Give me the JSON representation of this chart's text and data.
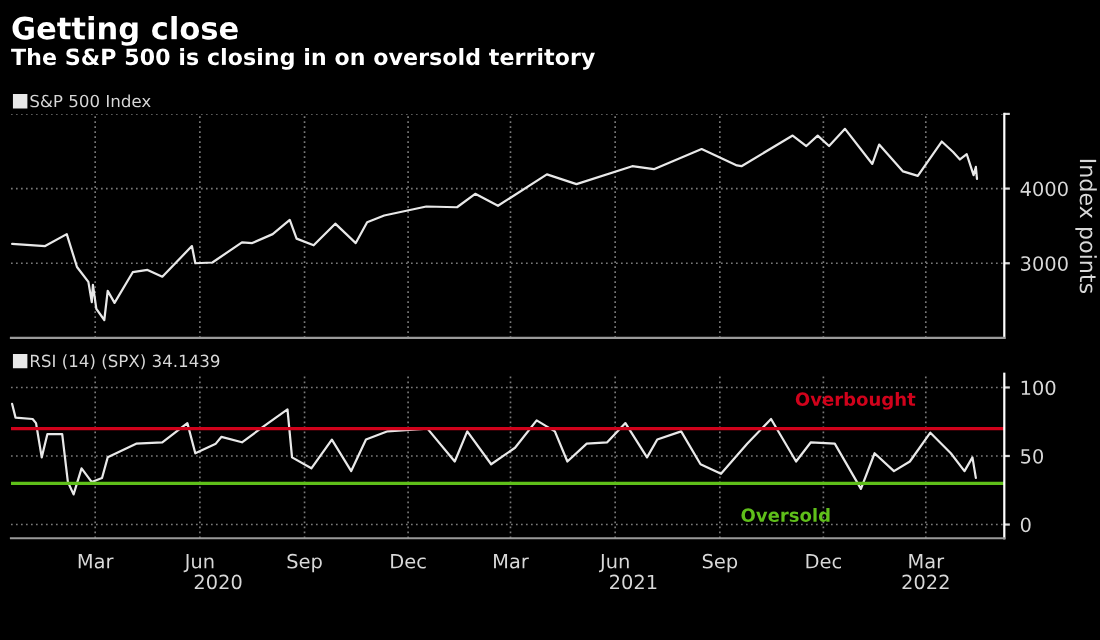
{
  "chart_data": [
    {
      "type": "line",
      "title": "Getting close",
      "subtitle": "The S&P 500 is closing in on oversold territory",
      "ylabel": "Index points",
      "series": [
        {
          "name": "S&P 500 Index",
          "color": "#e8e8e8",
          "x": [
            "2020-01-02",
            "2020-01-31",
            "2020-02-19",
            "2020-02-28",
            "2020-03-09",
            "2020-03-12",
            "2020-03-13",
            "2020-03-16",
            "2020-03-23",
            "2020-03-26",
            "2020-04-01",
            "2020-04-17",
            "2020-04-30",
            "2020-05-13",
            "2020-06-08",
            "2020-06-11",
            "2020-06-26",
            "2020-07-22",
            "2020-07-31",
            "2020-08-18",
            "2020-09-02",
            "2020-09-08",
            "2020-09-23",
            "2020-10-12",
            "2020-10-30",
            "2020-11-09",
            "2020-11-24",
            "2020-12-31",
            "2021-01-27",
            "2021-02-12",
            "2021-03-04",
            "2021-04-16",
            "2021-05-12",
            "2021-06-30",
            "2021-07-19",
            "2021-08-30",
            "2021-09-30",
            "2021-10-04",
            "2021-11-18",
            "2021-11-30",
            "2021-12-10",
            "2021-12-20",
            "2022-01-03",
            "2022-01-27",
            "2022-02-02",
            "2022-02-23",
            "2022-03-08",
            "2022-03-29",
            "2022-04-08",
            "2022-04-14",
            "2022-04-20",
            "2022-04-26",
            "2022-04-28",
            "2022-04-29"
          ],
          "values": [
            3260,
            3230,
            3390,
            2950,
            2750,
            2480,
            2710,
            2390,
            2240,
            2630,
            2470,
            2880,
            2910,
            2820,
            3230,
            3000,
            3010,
            3280,
            3270,
            3390,
            3580,
            3330,
            3240,
            3530,
            3270,
            3550,
            3640,
            3760,
            3750,
            3930,
            3770,
            4190,
            4060,
            4300,
            4260,
            4530,
            4310,
            4300,
            4710,
            4570,
            4710,
            4570,
            4800,
            4330,
            4590,
            4230,
            4170,
            4630,
            4490,
            4390,
            4460,
            4180,
            4290,
            4130
          ]
        }
      ],
      "xlim": [
        "2020-01-01",
        "2022-05-23"
      ],
      "xticks": [
        {
          "value": "2020-03-15",
          "label": null
        },
        {
          "value": "2020-06-15",
          "label": null
        },
        {
          "value": "2020-09-15",
          "label": null
        },
        {
          "value": "2020-12-15",
          "label": null
        },
        {
          "value": "2021-03-15",
          "label": null
        },
        {
          "value": "2021-06-15",
          "label": null
        },
        {
          "value": "2021-09-15",
          "label": null
        },
        {
          "value": "2021-12-15",
          "label": null
        },
        {
          "value": "2022-03-15",
          "label": null
        }
      ],
      "ylim": [
        2000,
        5000
      ],
      "yticks": [
        3000,
        4000,
        {
          "value": 5000,
          "label": null
        }
      ],
      "grid": true,
      "legend": "top left",
      "tick_labels": "y"
    },
    {
      "type": "line",
      "series": [
        {
          "name": "RSI (14) (SPX) 34.1439",
          "color": "#e8e8e8",
          "x": [
            "2020-01-02",
            "2020-01-05",
            "2020-01-20",
            "2020-01-23",
            "2020-01-28",
            "2020-02-02",
            "2020-02-15",
            "2020-02-20",
            "2020-02-25",
            "2020-03-03",
            "2020-03-12",
            "2020-03-21",
            "2020-03-26",
            "2020-04-20",
            "2020-05-13",
            "2020-06-04",
            "2020-06-11",
            "2020-06-29",
            "2020-07-04",
            "2020-07-22",
            "2020-08-14",
            "2020-08-31",
            "2020-09-04",
            "2020-09-21",
            "2020-10-09",
            "2020-10-26",
            "2020-11-08",
            "2020-11-27",
            "2021-01-01",
            "2021-01-25",
            "2021-02-05",
            "2021-02-26",
            "2021-03-19",
            "2021-04-07",
            "2021-04-23",
            "2021-05-04",
            "2021-05-21",
            "2021-06-08",
            "2021-06-24",
            "2021-07-13",
            "2021-07-22",
            "2021-08-12",
            "2021-08-29",
            "2021-09-16",
            "2021-10-09",
            "2021-10-30",
            "2021-11-21",
            "2021-12-04",
            "2021-12-25",
            "2022-01-17",
            "2022-01-29",
            "2022-02-15",
            "2022-03-01",
            "2022-03-19",
            "2022-04-06",
            "2022-04-18",
            "2022-04-25",
            "2022-04-28"
          ],
          "values": [
            88,
            78,
            77,
            74,
            49,
            66,
            66,
            31,
            22,
            41,
            31,
            34,
            49,
            59,
            60,
            74,
            52,
            59,
            64,
            60,
            74,
            84,
            49,
            41,
            62,
            39,
            62,
            68,
            70,
            46,
            68,
            44,
            56,
            76,
            68,
            46,
            59,
            60,
            74,
            49,
            62,
            68,
            44,
            37,
            59,
            77,
            46,
            60,
            59,
            26,
            52,
            39,
            46,
            67,
            52,
            39,
            49,
            34
          ]
        }
      ],
      "xlim": [
        "2020-01-01",
        "2022-05-23"
      ],
      "xticks": [
        {
          "value": "2020-03-15",
          "label": "Mar"
        },
        {
          "value": "2020-06-15",
          "label": "Jun"
        },
        {
          "value": "2020-09-15",
          "label": "Sep"
        },
        {
          "value": "2020-12-15",
          "label": "Dec"
        },
        {
          "value": "2021-03-15",
          "label": "Mar"
        },
        {
          "value": "2021-06-15",
          "label": "Jun"
        },
        {
          "value": "2021-09-15",
          "label": "Sep"
        },
        {
          "value": "2021-12-15",
          "label": "Dec"
        },
        {
          "value": "2022-03-15",
          "label": "Mar"
        }
      ],
      "x2lim": [
        "2020-01-01",
        "2022-05-23"
      ],
      "x2ticks": [
        {
          "value": "2020-07-01",
          "label": "2020"
        },
        {
          "value": "2021-07-01",
          "label": "2021"
        },
        {
          "value": "2022-03-15",
          "label": "2022"
        }
      ],
      "ylim": [
        -10,
        110
      ],
      "yticks": [
        0,
        50,
        100
      ],
      "ref_lines": [
        {
          "axis": "y",
          "value": 70,
          "label": "Overbought",
          "color": "#d0021b"
        },
        {
          "axis": "y",
          "value": 30,
          "label": "Oversold",
          "color": "#5fbf1a"
        }
      ],
      "grid": true,
      "legend": "top left"
    }
  ]
}
